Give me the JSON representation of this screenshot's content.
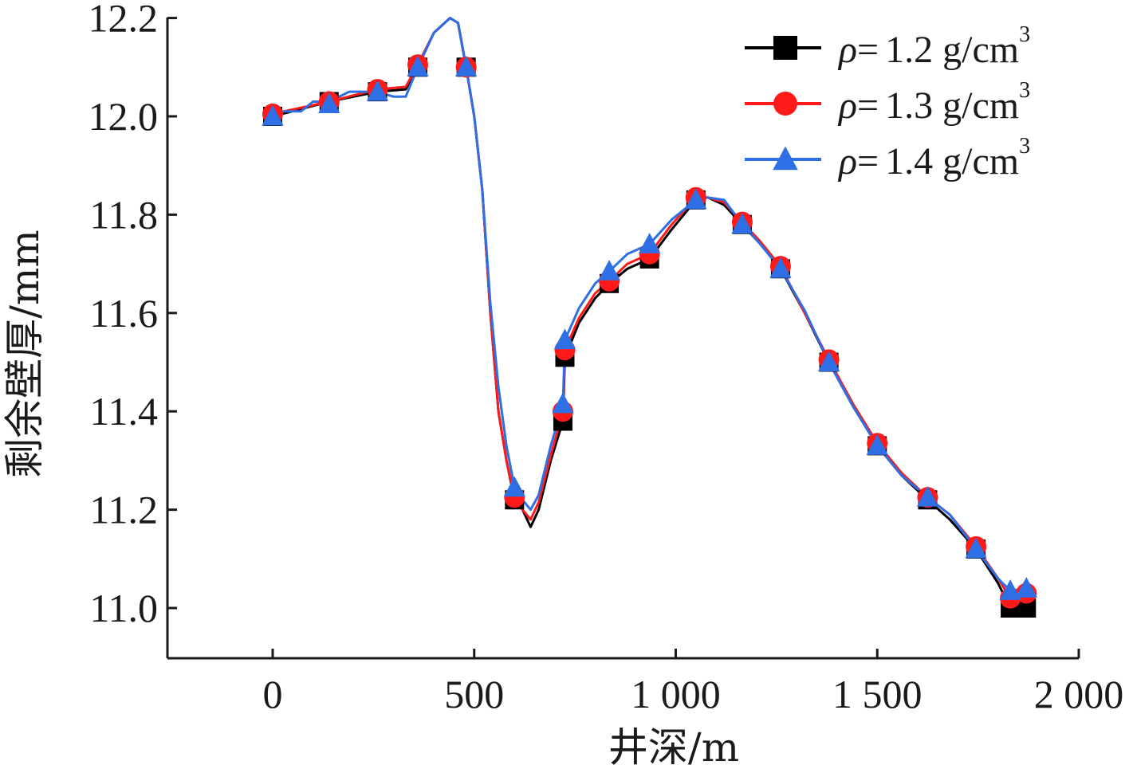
{
  "chart_data": {
    "type": "line",
    "title": "",
    "xlabel": "井深/m",
    "ylabel": "剩余壁厚/mm",
    "xlim": [
      -260,
      2000
    ],
    "ylim": [
      10.9,
      12.2
    ],
    "xticks": [
      0,
      500,
      1000,
      1500,
      2000
    ],
    "xtick_labels": [
      "0",
      "500",
      "1 000",
      "1 500",
      "2 000"
    ],
    "yticks": [
      11.0,
      11.2,
      11.4,
      11.6,
      11.8,
      12.0,
      12.2
    ],
    "ytick_labels": [
      "11.0",
      "11.2",
      "11.4",
      "11.6",
      "11.8",
      "12.0",
      "12.2"
    ],
    "legend_position": "top-right",
    "series": [
      {
        "name": "1.2 g/cm",
        "label_rho": "ρ",
        "label_eq": "=",
        "label_sup": "3",
        "color": "#000000",
        "marker": "square",
        "markers": [
          [
            0,
            12.0
          ],
          [
            140,
            12.03
          ],
          [
            260,
            12.05
          ],
          [
            360,
            12.1
          ],
          [
            480,
            12.1
          ],
          [
            600,
            11.22
          ],
          [
            720,
            11.38
          ],
          [
            725,
            11.51
          ],
          [
            835,
            11.66
          ],
          [
            935,
            11.71
          ],
          [
            1050,
            11.83
          ],
          [
            1165,
            11.78
          ],
          [
            1260,
            11.69
          ],
          [
            1380,
            11.5
          ],
          [
            1500,
            11.33
          ],
          [
            1625,
            11.22
          ],
          [
            1745,
            11.12
          ],
          [
            1830,
            11.0
          ],
          [
            1870,
            11.0
          ]
        ],
        "line": [
          [
            0,
            12.0
          ],
          [
            140,
            12.03
          ],
          [
            260,
            12.05
          ],
          [
            330,
            12.055
          ],
          [
            360,
            12.1
          ],
          [
            400,
            12.17
          ],
          [
            440,
            12.2
          ],
          [
            460,
            12.19
          ],
          [
            480,
            12.1
          ],
          [
            500,
            12.0
          ],
          [
            520,
            11.85
          ],
          [
            540,
            11.6
          ],
          [
            560,
            11.4
          ],
          [
            580,
            11.3
          ],
          [
            600,
            11.22
          ],
          [
            620,
            11.2
          ],
          [
            640,
            11.165
          ],
          [
            660,
            11.2
          ],
          [
            690,
            11.3
          ],
          [
            720,
            11.38
          ],
          [
            725,
            11.51
          ],
          [
            760,
            11.58
          ],
          [
            800,
            11.63
          ],
          [
            835,
            11.66
          ],
          [
            880,
            11.69
          ],
          [
            935,
            11.71
          ],
          [
            990,
            11.77
          ],
          [
            1050,
            11.83
          ],
          [
            1080,
            11.835
          ],
          [
            1120,
            11.82
          ],
          [
            1165,
            11.78
          ],
          [
            1210,
            11.74
          ],
          [
            1260,
            11.69
          ],
          [
            1320,
            11.6
          ],
          [
            1380,
            11.5
          ],
          [
            1440,
            11.41
          ],
          [
            1500,
            11.33
          ],
          [
            1560,
            11.27
          ],
          [
            1625,
            11.22
          ],
          [
            1680,
            11.18
          ],
          [
            1745,
            11.12
          ],
          [
            1800,
            11.05
          ],
          [
            1830,
            11.0
          ],
          [
            1870,
            11.0
          ]
        ]
      },
      {
        "name": "1.3 g/cm",
        "label_rho": "ρ",
        "label_eq": "=",
        "label_sup": "3",
        "color": "#ff1a1a",
        "marker": "circle",
        "markers": [
          [
            0,
            12.005
          ],
          [
            140,
            12.03
          ],
          [
            260,
            12.055
          ],
          [
            360,
            12.105
          ],
          [
            480,
            12.1
          ],
          [
            600,
            11.225
          ],
          [
            720,
            11.4
          ],
          [
            725,
            11.525
          ],
          [
            835,
            11.665
          ],
          [
            935,
            11.72
          ],
          [
            1050,
            11.835
          ],
          [
            1165,
            11.785
          ],
          [
            1260,
            11.695
          ],
          [
            1380,
            11.505
          ],
          [
            1500,
            11.335
          ],
          [
            1625,
            11.225
          ],
          [
            1745,
            11.125
          ],
          [
            1830,
            11.02
          ],
          [
            1870,
            11.03
          ]
        ],
        "line": [
          [
            0,
            12.005
          ],
          [
            140,
            12.03
          ],
          [
            260,
            12.055
          ],
          [
            330,
            12.06
          ],
          [
            360,
            12.105
          ],
          [
            400,
            12.17
          ],
          [
            440,
            12.2
          ],
          [
            460,
            12.19
          ],
          [
            480,
            12.1
          ],
          [
            500,
            12.0
          ],
          [
            520,
            11.85
          ],
          [
            540,
            11.6
          ],
          [
            560,
            11.4
          ],
          [
            580,
            11.3
          ],
          [
            600,
            11.225
          ],
          [
            620,
            11.2
          ],
          [
            640,
            11.18
          ],
          [
            660,
            11.215
          ],
          [
            690,
            11.31
          ],
          [
            720,
            11.4
          ],
          [
            725,
            11.525
          ],
          [
            760,
            11.59
          ],
          [
            800,
            11.64
          ],
          [
            835,
            11.665
          ],
          [
            880,
            11.7
          ],
          [
            935,
            11.72
          ],
          [
            990,
            11.78
          ],
          [
            1050,
            11.835
          ],
          [
            1080,
            11.835
          ],
          [
            1120,
            11.825
          ],
          [
            1165,
            11.785
          ],
          [
            1210,
            11.745
          ],
          [
            1260,
            11.695
          ],
          [
            1320,
            11.6
          ],
          [
            1380,
            11.505
          ],
          [
            1440,
            11.415
          ],
          [
            1500,
            11.335
          ],
          [
            1560,
            11.275
          ],
          [
            1625,
            11.225
          ],
          [
            1680,
            11.19
          ],
          [
            1745,
            11.125
          ],
          [
            1800,
            11.06
          ],
          [
            1830,
            11.02
          ],
          [
            1870,
            11.03
          ]
        ]
      },
      {
        "name": "1.4 g/cm",
        "label_rho": "ρ",
        "label_eq": "=",
        "label_sup": "3",
        "color": "#2f6fe6",
        "marker": "triangle",
        "markers": [
          [
            0,
            12.0
          ],
          [
            140,
            12.025
          ],
          [
            260,
            12.05
          ],
          [
            360,
            12.1
          ],
          [
            480,
            12.1
          ],
          [
            600,
            11.245
          ],
          [
            720,
            11.415
          ],
          [
            725,
            11.545
          ],
          [
            835,
            11.685
          ],
          [
            935,
            11.74
          ],
          [
            1050,
            11.83
          ],
          [
            1165,
            11.78
          ],
          [
            1260,
            11.69
          ],
          [
            1380,
            11.5
          ],
          [
            1500,
            11.33
          ],
          [
            1625,
            11.225
          ],
          [
            1745,
            11.12
          ],
          [
            1830,
            11.035
          ],
          [
            1870,
            11.04
          ]
        ],
        "line": [
          [
            0,
            12.01
          ],
          [
            70,
            12.01
          ],
          [
            100,
            12.03
          ],
          [
            140,
            12.03
          ],
          [
            190,
            12.05
          ],
          [
            260,
            12.05
          ],
          [
            300,
            12.04
          ],
          [
            330,
            12.04
          ],
          [
            360,
            12.1
          ],
          [
            400,
            12.17
          ],
          [
            440,
            12.2
          ],
          [
            460,
            12.19
          ],
          [
            480,
            12.1
          ],
          [
            500,
            12.0
          ],
          [
            520,
            11.85
          ],
          [
            540,
            11.62
          ],
          [
            560,
            11.45
          ],
          [
            580,
            11.33
          ],
          [
            600,
            11.245
          ],
          [
            620,
            11.22
          ],
          [
            640,
            11.2
          ],
          [
            660,
            11.23
          ],
          [
            690,
            11.33
          ],
          [
            720,
            11.415
          ],
          [
            725,
            11.545
          ],
          [
            760,
            11.61
          ],
          [
            800,
            11.66
          ],
          [
            835,
            11.685
          ],
          [
            880,
            11.72
          ],
          [
            935,
            11.74
          ],
          [
            990,
            11.79
          ],
          [
            1050,
            11.83
          ],
          [
            1080,
            11.835
          ],
          [
            1120,
            11.83
          ],
          [
            1165,
            11.78
          ],
          [
            1210,
            11.74
          ],
          [
            1260,
            11.69
          ],
          [
            1320,
            11.605
          ],
          [
            1380,
            11.5
          ],
          [
            1440,
            11.41
          ],
          [
            1500,
            11.33
          ],
          [
            1560,
            11.27
          ],
          [
            1625,
            11.225
          ],
          [
            1680,
            11.19
          ],
          [
            1745,
            11.12
          ],
          [
            1800,
            11.06
          ],
          [
            1830,
            11.035
          ],
          [
            1870,
            11.04
          ]
        ]
      }
    ]
  }
}
